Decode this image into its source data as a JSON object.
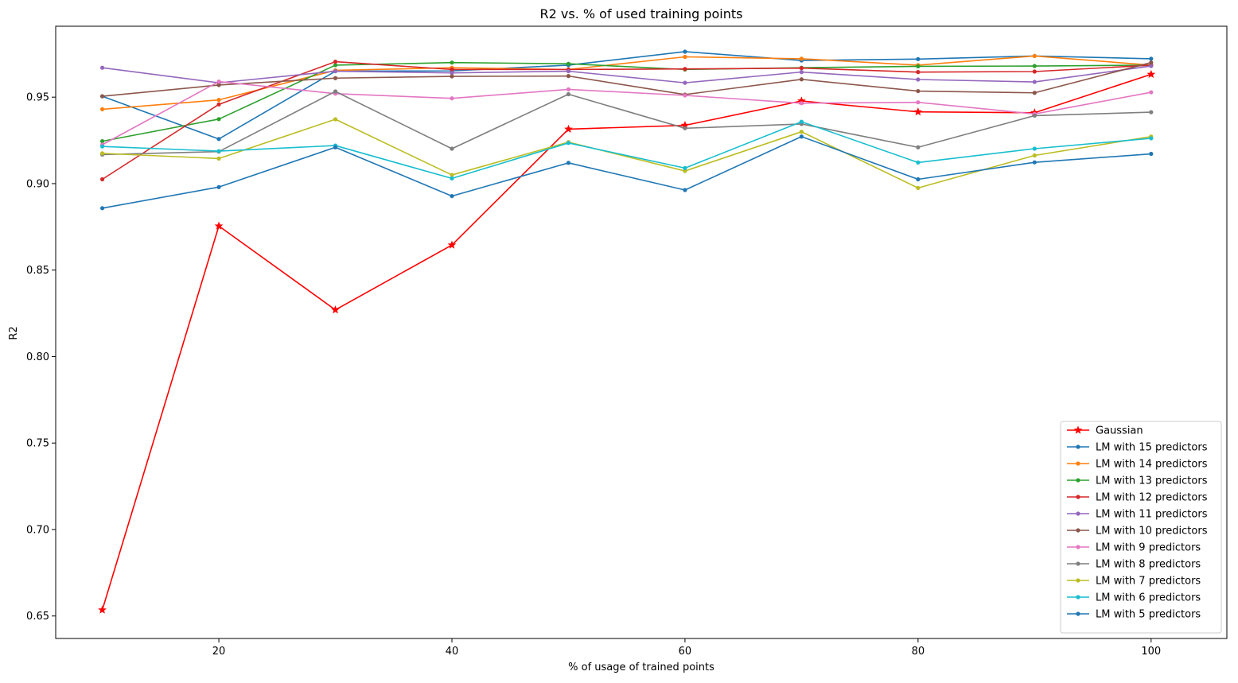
{
  "chart_data": {
    "type": "line",
    "title": "R2 vs. % of used training points",
    "xlabel": "% of usage of trained points",
    "ylabel": "R2",
    "xlim": [
      6,
      106.5
    ],
    "ylim": [
      0.637,
      0.991
    ],
    "x": [
      10,
      20,
      30,
      40,
      50,
      60,
      70,
      80,
      90,
      100
    ],
    "xticks": [
      20,
      40,
      60,
      80,
      100
    ],
    "yticks": [
      0.65,
      0.7,
      0.75,
      0.8,
      0.85,
      0.9,
      0.95
    ],
    "xtick_labels": [
      "20",
      "40",
      "60",
      "80",
      "100"
    ],
    "ytick_labels": [
      "0.65",
      "0.70",
      "0.75",
      "0.80",
      "0.85",
      "0.90",
      "0.95"
    ],
    "grid": false,
    "legend_position": "lower-right",
    "series": [
      {
        "name": "Gaussian",
        "color": "#ff0000",
        "marker": "star",
        "values": [
          0.6535,
          0.8755,
          0.827,
          0.8645,
          0.9315,
          0.9337,
          0.9478,
          0.9415,
          0.941,
          0.9632
        ]
      },
      {
        "name": "LM with 15 predictors",
        "color": "#1f77b4",
        "marker": "dot",
        "values": [
          0.9505,
          0.9258,
          0.965,
          0.9652,
          0.9685,
          0.9763,
          0.9712,
          0.972,
          0.9738,
          0.9722
        ]
      },
      {
        "name": "LM with 14 predictors",
        "color": "#ff7f0e",
        "marker": "dot",
        "values": [
          0.943,
          0.9484,
          0.9655,
          0.967,
          0.966,
          0.9733,
          0.9722,
          0.9685,
          0.9738,
          0.9685
        ]
      },
      {
        "name": "LM with 13 predictors",
        "color": "#2ca02c",
        "marker": "dot",
        "values": [
          0.9245,
          0.9373,
          0.9685,
          0.97,
          0.9693,
          0.966,
          0.967,
          0.9678,
          0.968,
          0.9685
        ]
      },
      {
        "name": "LM with 12 predictors",
        "color": "#d62728",
        "marker": "dot",
        "values": [
          0.9025,
          0.9458,
          0.9705,
          0.966,
          0.966,
          0.9663,
          0.9668,
          0.9645,
          0.9648,
          0.9685
        ]
      },
      {
        "name": "LM with 11 predictors",
        "color": "#9467bd",
        "marker": "dot",
        "values": [
          0.967,
          0.9583,
          0.965,
          0.964,
          0.965,
          0.9583,
          0.9645,
          0.9602,
          0.9588,
          0.968
        ]
      },
      {
        "name": "LM with 10 predictors",
        "color": "#8c564b",
        "marker": "dot",
        "values": [
          0.9505,
          0.957,
          0.961,
          0.962,
          0.9622,
          0.9515,
          0.9603,
          0.9535,
          0.9525,
          0.97
        ]
      },
      {
        "name": "LM with 9 predictors",
        "color": "#e377c2",
        "marker": "dot",
        "values": [
          0.9225,
          0.959,
          0.952,
          0.9493,
          0.9545,
          0.951,
          0.9465,
          0.947,
          0.9403,
          0.9528
        ]
      },
      {
        "name": "LM with 8 predictors",
        "color": "#7f7f7f",
        "marker": "dot",
        "values": [
          0.9168,
          0.9185,
          0.9533,
          0.9202,
          0.9517,
          0.932,
          0.9345,
          0.921,
          0.9393,
          0.9413
        ]
      },
      {
        "name": "LM with 7 predictors",
        "color": "#bcbd22",
        "marker": "dot",
        "values": [
          0.9175,
          0.9145,
          0.9372,
          0.905,
          0.924,
          0.9073,
          0.93,
          0.8975,
          0.9163,
          0.9272
        ]
      },
      {
        "name": "LM with 6 predictors",
        "color": "#17becf",
        "marker": "dot",
        "values": [
          0.9215,
          0.9188,
          0.922,
          0.903,
          0.9235,
          0.909,
          0.9358,
          0.9122,
          0.9202,
          0.9262
        ]
      },
      {
        "name": "LM with 5 predictors",
        "color": "#1f77b4",
        "marker": "dot",
        "values": [
          0.8858,
          0.898,
          0.921,
          0.8928,
          0.912,
          0.8963,
          0.9272,
          0.9025,
          0.9123,
          0.9172
        ]
      }
    ]
  }
}
